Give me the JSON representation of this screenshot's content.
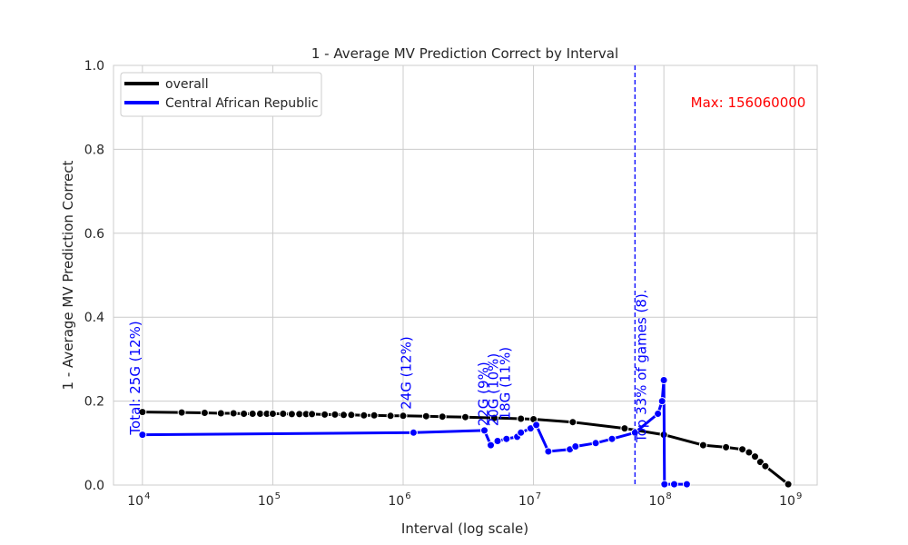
{
  "chart_data": {
    "type": "line",
    "title": "1 - Average MV Prediction Correct by Interval",
    "xlabel": "Interval (log scale)",
    "ylabel": "1 - Average MV Prediction Correct",
    "x_scale": "log",
    "xlim": [
      6000,
      1500000000
    ],
    "ylim": [
      0,
      1.0
    ],
    "grid": true,
    "y_ticks": [
      "0.0",
      "0.2",
      "0.4",
      "0.6",
      "0.8",
      "1.0"
    ],
    "y_tick_values": [
      0,
      0.2,
      0.4,
      0.6,
      0.8,
      1.0
    ],
    "x_ticks": [
      {
        "value": 10000,
        "base": "10",
        "exp": "4"
      },
      {
        "value": 100000,
        "base": "10",
        "exp": "5"
      },
      {
        "value": 1000000,
        "base": "10",
        "exp": "6"
      },
      {
        "value": 10000000,
        "base": "10",
        "exp": "7"
      },
      {
        "value": 100000000,
        "base": "10",
        "exp": "8"
      },
      {
        "value": 1000000000,
        "base": "10",
        "exp": "9"
      }
    ],
    "legend": {
      "position": "upper-left",
      "entries": [
        {
          "label": "overall",
          "color": "#000000"
        },
        {
          "label": "Central African Republic",
          "color": "#0000ff"
        }
      ]
    },
    "series": [
      {
        "name": "overall",
        "color": "#000000",
        "x": [
          10000,
          20000,
          30000,
          40000,
          50000,
          60000,
          70000,
          80000,
          90000,
          100000,
          120000,
          140000,
          160000,
          180000,
          200000,
          250000,
          300000,
          350000,
          400000,
          500000,
          600000,
          800000,
          1000000,
          1500000,
          2000000,
          3000000,
          5000000,
          8000000,
          10000000,
          20000000,
          50000000,
          100000000,
          200000000,
          300000000,
          400000000,
          450000000,
          500000000,
          550000000,
          600000000,
          900000000
        ],
        "y": [
          0.174,
          0.173,
          0.172,
          0.171,
          0.171,
          0.17,
          0.17,
          0.17,
          0.17,
          0.17,
          0.17,
          0.169,
          0.169,
          0.169,
          0.169,
          0.168,
          0.168,
          0.167,
          0.167,
          0.166,
          0.166,
          0.165,
          0.165,
          0.164,
          0.163,
          0.162,
          0.16,
          0.158,
          0.157,
          0.15,
          0.135,
          0.12,
          0.095,
          0.09,
          0.085,
          0.078,
          0.068,
          0.055,
          0.045,
          0.002
        ]
      },
      {
        "name": "Central African Republic",
        "color": "#0000ff",
        "x": [
          10000,
          1200000,
          4200000,
          4700000,
          5300000,
          6200000,
          7500000,
          8000000,
          9500000,
          10500000,
          13000000,
          19000000,
          21000000,
          30000000,
          40000000,
          60000000,
          90000000,
          97000000,
          100000000,
          101000000,
          120000000,
          150000000
        ],
        "y": [
          0.12,
          0.125,
          0.13,
          0.095,
          0.105,
          0.11,
          0.115,
          0.125,
          0.135,
          0.143,
          0.08,
          0.085,
          0.092,
          0.1,
          0.11,
          0.125,
          0.17,
          0.2,
          0.25,
          0.002,
          0.002,
          0.002
        ]
      }
    ],
    "vline": {
      "x": 60000000,
      "color": "#0000ff",
      "label": "Top 33% of games (8)."
    },
    "annotations": [
      {
        "text": "Total: 25G (12%)",
        "x": 10000,
        "y": 0.12,
        "color": "#0000ff"
      },
      {
        "text": "24G (12%)",
        "x": 1200000,
        "y": 0.18,
        "color": "#0000ff"
      },
      {
        "text": "22G (9%)",
        "x": 4700000,
        "y": 0.14,
        "color": "#0000ff"
      },
      {
        "text": "20G (10%)",
        "x": 5600000,
        "y": 0.14,
        "color": "#0000ff"
      },
      {
        "text": "18G (11%)",
        "x": 6900000,
        "y": 0.155,
        "color": "#0000ff"
      }
    ],
    "max_label": {
      "text": "Max: 156060000",
      "color": "#ff0000"
    }
  }
}
